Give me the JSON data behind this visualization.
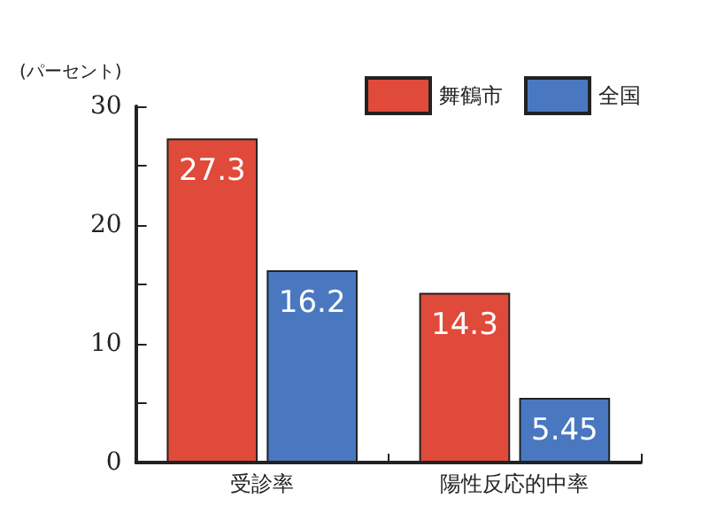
{
  "chart_data": {
    "type": "bar",
    "ylabel": "(パーセント)",
    "categories": [
      "受診率",
      "陽性反応的中率"
    ],
    "series": [
      {
        "name": "舞鶴市",
        "color": "#e04a3a",
        "values": [
          27.3,
          14.3
        ]
      },
      {
        "name": "全国",
        "color": "#4a78c0",
        "values": [
          16.2,
          5.45
        ]
      }
    ],
    "ylim": [
      0,
      30
    ],
    "yticks": [
      0,
      {
        "value": 5,
        "label": null
      },
      10,
      {
        "value": 15,
        "label": null
      },
      20,
      {
        "value": 25,
        "label": null
      },
      30
    ],
    "data_labels": true,
    "legend": "top right",
    "grid": false
  }
}
